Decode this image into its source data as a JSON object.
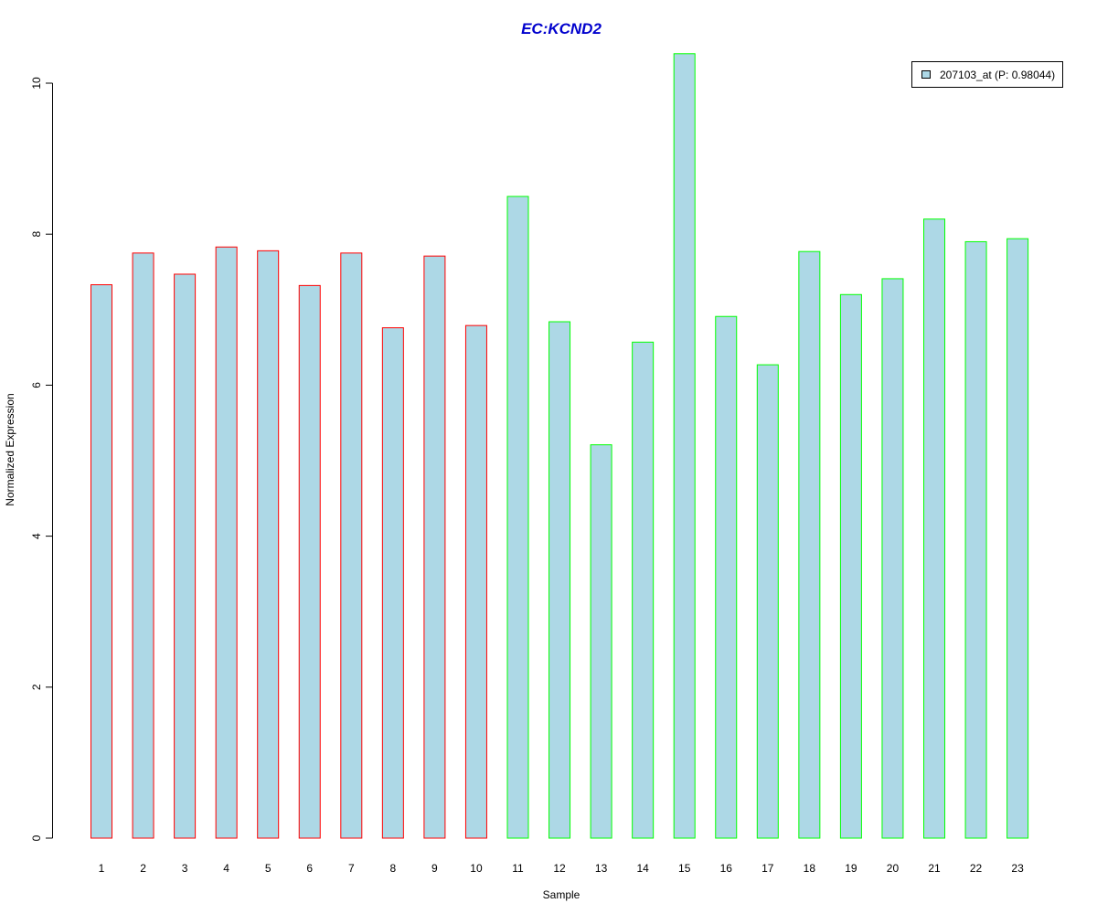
{
  "chart_data": {
    "type": "bar",
    "title": "EC:KCND2",
    "xlabel": "Sample",
    "ylabel": "Normalized Expression",
    "categories": [
      "1",
      "2",
      "3",
      "4",
      "5",
      "6",
      "7",
      "8",
      "9",
      "10",
      "11",
      "12",
      "13",
      "14",
      "15",
      "16",
      "17",
      "18",
      "19",
      "20",
      "21",
      "22",
      "23"
    ],
    "series": [
      {
        "name": "207103_at (P: 0.98044)",
        "values": [
          7.33,
          7.75,
          7.47,
          7.83,
          7.78,
          7.32,
          7.75,
          6.76,
          7.71,
          6.79,
          8.5,
          6.84,
          5.21,
          6.57,
          10.39,
          6.91,
          6.27,
          7.77,
          7.2,
          7.41,
          8.2,
          7.9,
          7.94
        ]
      }
    ],
    "group_colors": [
      "#ff0000",
      "#ff0000",
      "#ff0000",
      "#ff0000",
      "#ff0000",
      "#ff0000",
      "#ff0000",
      "#ff0000",
      "#ff0000",
      "#ff0000",
      "#00ff00",
      "#00ff00",
      "#00ff00",
      "#00ff00",
      "#00ff00",
      "#00ff00",
      "#00ff00",
      "#00ff00",
      "#00ff00",
      "#00ff00",
      "#00ff00",
      "#00ff00",
      "#00ff00"
    ],
    "yticks": [
      "0",
      "2",
      "4",
      "6",
      "8",
      "10"
    ],
    "ylim": [
      0,
      10.4
    ],
    "bar_fill": "#add8e6",
    "title_color": "#0000cd",
    "legend_position": "top-right",
    "grid": false
  }
}
